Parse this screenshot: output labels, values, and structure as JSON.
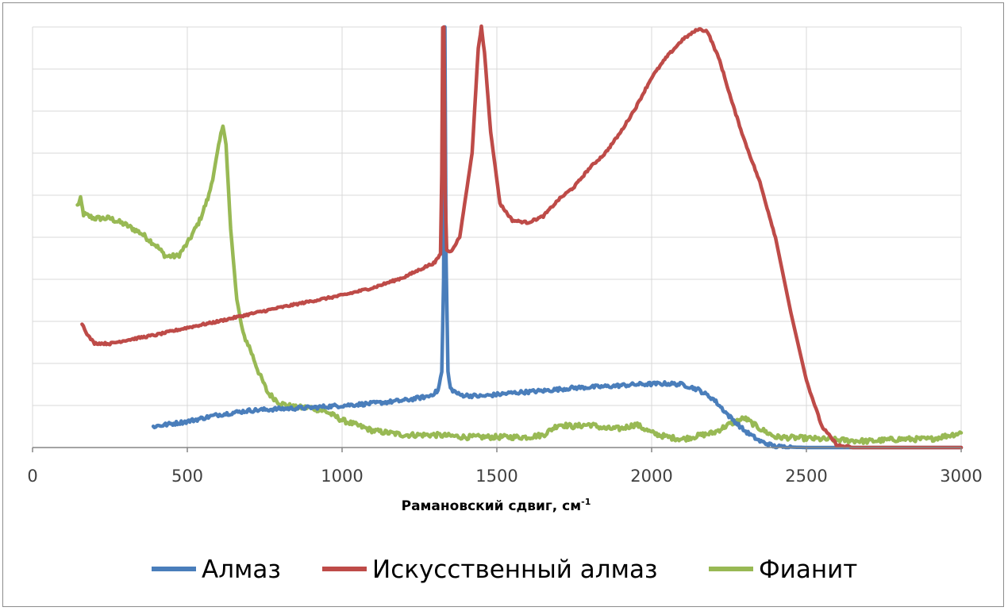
{
  "chart_data": {
    "type": "line",
    "title": "",
    "xlabel": "Рамановский сдвиг, см",
    "xlabel_superscript": "-1",
    "ylabel": "",
    "xlim": [
      0,
      3000
    ],
    "ylim": [
      0,
      10
    ],
    "xticks": [
      "0",
      "500",
      "1000",
      "1500",
      "2000",
      "2500",
      "3000"
    ],
    "ytick_labels_shown": false,
    "grid": true,
    "legend_position": "bottom",
    "series": [
      {
        "name": "Алмаз",
        "color": "#4a7ebb",
        "points": [
          [
            390,
            0.5
          ],
          [
            500,
            0.62
          ],
          [
            600,
            0.78
          ],
          [
            700,
            0.88
          ],
          [
            800,
            0.92
          ],
          [
            900,
            0.95
          ],
          [
            1000,
            1.0
          ],
          [
            1100,
            1.05
          ],
          [
            1200,
            1.12
          ],
          [
            1280,
            1.22
          ],
          [
            1310,
            1.35
          ],
          [
            1322,
            1.8
          ],
          [
            1328,
            4.0
          ],
          [
            1332,
            10.0
          ],
          [
            1336,
            4.5
          ],
          [
            1342,
            1.8
          ],
          [
            1350,
            1.4
          ],
          [
            1380,
            1.25
          ],
          [
            1450,
            1.22
          ],
          [
            1550,
            1.3
          ],
          [
            1650,
            1.35
          ],
          [
            1750,
            1.42
          ],
          [
            1850,
            1.45
          ],
          [
            1950,
            1.5
          ],
          [
            2050,
            1.52
          ],
          [
            2100,
            1.5
          ],
          [
            2150,
            1.38
          ],
          [
            2200,
            1.15
          ],
          [
            2250,
            0.75
          ],
          [
            2300,
            0.4
          ],
          [
            2350,
            0.15
          ],
          [
            2400,
            0.02
          ],
          [
            2500,
            0.0
          ],
          [
            2600,
            0.0
          ],
          [
            3000,
            0.0
          ]
        ]
      },
      {
        "name": "Искусственный алмаз",
        "color": "#be4b48",
        "points": [
          [
            160,
            2.95
          ],
          [
            180,
            2.65
          ],
          [
            200,
            2.48
          ],
          [
            250,
            2.47
          ],
          [
            300,
            2.55
          ],
          [
            400,
            2.68
          ],
          [
            500,
            2.85
          ],
          [
            600,
            3.0
          ],
          [
            700,
            3.17
          ],
          [
            800,
            3.33
          ],
          [
            900,
            3.48
          ],
          [
            1000,
            3.62
          ],
          [
            1100,
            3.8
          ],
          [
            1200,
            4.05
          ],
          [
            1270,
            4.3
          ],
          [
            1300,
            4.4
          ],
          [
            1318,
            4.6
          ],
          [
            1322,
            6.5
          ],
          [
            1325,
            10.0
          ],
          [
            1329,
            10.0
          ],
          [
            1333,
            6.0
          ],
          [
            1338,
            4.7
          ],
          [
            1350,
            4.65
          ],
          [
            1380,
            5.0
          ],
          [
            1420,
            7.0
          ],
          [
            1440,
            9.5
          ],
          [
            1450,
            10.0
          ],
          [
            1460,
            9.4
          ],
          [
            1480,
            7.5
          ],
          [
            1510,
            5.8
          ],
          [
            1550,
            5.4
          ],
          [
            1600,
            5.35
          ],
          [
            1650,
            5.5
          ],
          [
            1700,
            5.9
          ],
          [
            1750,
            6.2
          ],
          [
            1800,
            6.65
          ],
          [
            1850,
            7.0
          ],
          [
            1900,
            7.5
          ],
          [
            1950,
            8.1
          ],
          [
            2000,
            8.8
          ],
          [
            2050,
            9.3
          ],
          [
            2100,
            9.7
          ],
          [
            2150,
            9.95
          ],
          [
            2180,
            9.9
          ],
          [
            2220,
            9.2
          ],
          [
            2260,
            8.2
          ],
          [
            2300,
            7.3
          ],
          [
            2350,
            6.3
          ],
          [
            2400,
            5.0
          ],
          [
            2450,
            3.2
          ],
          [
            2500,
            1.6
          ],
          [
            2550,
            0.5
          ],
          [
            2600,
            0.05
          ],
          [
            2650,
            0.0
          ],
          [
            3000,
            0.0
          ]
        ]
      },
      {
        "name": "Фианит",
        "color": "#98b954",
        "points": [
          [
            145,
            5.75
          ],
          [
            155,
            5.9
          ],
          [
            165,
            5.55
          ],
          [
            200,
            5.45
          ],
          [
            250,
            5.45
          ],
          [
            300,
            5.3
          ],
          [
            350,
            5.1
          ],
          [
            400,
            4.8
          ],
          [
            430,
            4.55
          ],
          [
            470,
            4.55
          ],
          [
            500,
            4.85
          ],
          [
            540,
            5.4
          ],
          [
            570,
            6.0
          ],
          [
            590,
            6.7
          ],
          [
            605,
            7.3
          ],
          [
            615,
            7.7
          ],
          [
            625,
            7.2
          ],
          [
            640,
            5.2
          ],
          [
            660,
            3.5
          ],
          [
            680,
            2.7
          ],
          [
            700,
            2.4
          ],
          [
            730,
            1.8
          ],
          [
            760,
            1.3
          ],
          [
            800,
            1.05
          ],
          [
            850,
            0.95
          ],
          [
            900,
            0.95
          ],
          [
            950,
            0.85
          ],
          [
            1000,
            0.65
          ],
          [
            1100,
            0.4
          ],
          [
            1200,
            0.3
          ],
          [
            1300,
            0.3
          ],
          [
            1400,
            0.25
          ],
          [
            1500,
            0.25
          ],
          [
            1600,
            0.25
          ],
          [
            1650,
            0.3
          ],
          [
            1700,
            0.55
          ],
          [
            1750,
            0.5
          ],
          [
            1800,
            0.55
          ],
          [
            1850,
            0.45
          ],
          [
            1900,
            0.45
          ],
          [
            1950,
            0.55
          ],
          [
            2000,
            0.35
          ],
          [
            2050,
            0.25
          ],
          [
            2100,
            0.2
          ],
          [
            2150,
            0.28
          ],
          [
            2200,
            0.35
          ],
          [
            2250,
            0.55
          ],
          [
            2300,
            0.7
          ],
          [
            2350,
            0.45
          ],
          [
            2400,
            0.25
          ],
          [
            2500,
            0.22
          ],
          [
            2600,
            0.18
          ],
          [
            2700,
            0.15
          ],
          [
            2800,
            0.2
          ],
          [
            2900,
            0.2
          ],
          [
            3000,
            0.35
          ]
        ]
      }
    ]
  }
}
